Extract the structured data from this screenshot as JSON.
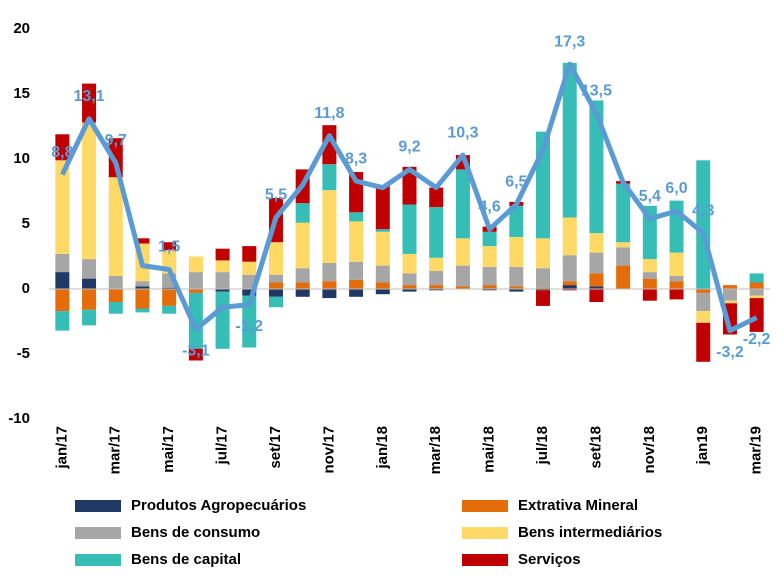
{
  "chart_data": {
    "type": "bar",
    "stacked": true,
    "categories": [
      "jan/17",
      null,
      "mar/17",
      null,
      "mai/17",
      null,
      "jul/17",
      null,
      "set/17",
      null,
      "nov/17",
      null,
      "jan/18",
      null,
      "mar/18",
      null,
      "mai/18",
      null,
      "jul/18",
      null,
      "set/18",
      null,
      "nov/18",
      null,
      "jan19",
      null,
      "mar/19"
    ],
    "ylim": [
      -10,
      20
    ],
    "yticks": [
      -10,
      -5,
      0,
      5,
      10,
      15,
      20
    ],
    "series": [
      {
        "name": "Produtos Agropecuários",
        "color": "#1f3864",
        "values": [
          1.3,
          0.8,
          0,
          0.2,
          0.1,
          0,
          -0.2,
          -0.5,
          -0.6,
          -0.6,
          -0.7,
          -0.6,
          -0.4,
          -0.2,
          -0.1,
          0,
          -0.1,
          -0.2,
          -0.1,
          0.3,
          0.2,
          0,
          0,
          0,
          0,
          0,
          0
        ]
      },
      {
        "name": "Extrativa Mineral",
        "color": "#e46c0a",
        "values": [
          -1.7,
          -1.6,
          -1.0,
          -1.5,
          -1.3,
          -0.3,
          0,
          0,
          0.5,
          0.5,
          0.6,
          0.7,
          0.5,
          0.3,
          0.3,
          0.2,
          0.3,
          0.2,
          0.1,
          0.3,
          1.0,
          1.8,
          0.8,
          0.6,
          -0.3,
          0.3,
          0.5
        ]
      },
      {
        "name": "Bens de consumo",
        "color": "#a6a6a6",
        "values": [
          1.4,
          1.5,
          1.0,
          0.4,
          1.1,
          1.3,
          1.3,
          1.1,
          0.6,
          1.1,
          1.4,
          1.4,
          1.3,
          0.9,
          1.1,
          1.6,
          1.4,
          1.5,
          1.5,
          2.0,
          1.6,
          1.4,
          0.5,
          0.4,
          -1.4,
          -0.9,
          -0.5
        ]
      },
      {
        "name": "Bens intermediários",
        "color": "#ffd966",
        "values": [
          7.2,
          10.5,
          7.6,
          2.9,
          1.8,
          1.2,
          0.9,
          1.0,
          2.5,
          3.5,
          5.6,
          3.1,
          2.6,
          1.5,
          1.0,
          2.1,
          1.6,
          2.3,
          2.3,
          2.9,
          1.5,
          0.4,
          1.0,
          1.8,
          -0.9,
          -0.2,
          -0.2
        ]
      },
      {
        "name": "Bens de capital",
        "color": "#36bdb6",
        "values": [
          -1.5,
          -1.2,
          -0.9,
          -0.3,
          -0.6,
          -4.3,
          -4.4,
          -4.0,
          -0.8,
          1.5,
          2.0,
          0.7,
          0.2,
          3.8,
          3.9,
          5.3,
          1.1,
          2.4,
          8.2,
          11.9,
          10.2,
          4.5,
          4.1,
          4.0,
          9.9,
          0,
          0.7
        ]
      },
      {
        "name": "Serviços",
        "color": "#c00000",
        "values": [
          2.0,
          3.0,
          3.0,
          0.4,
          0.6,
          -0.9,
          0.9,
          1.2,
          3.4,
          2.6,
          3.0,
          3.1,
          3.4,
          2.9,
          1.5,
          1.1,
          0.4,
          0.3,
          -1.2,
          -0.1,
          -1.0,
          0.2,
          -0.9,
          -0.8,
          -3.0,
          -2.4,
          -2.6
        ]
      }
    ],
    "line": {
      "color": "#5b9bd5",
      "values": [
        8.8,
        13.1,
        9.7,
        1.8,
        1.5,
        -3.1,
        -1.4,
        -1.2,
        5.5,
        8.0,
        11.8,
        8.3,
        7.8,
        9.2,
        7.8,
        10.3,
        4.6,
        6.5,
        10.7,
        17.3,
        13.5,
        8.2,
        5.4,
        6.0,
        4.3,
        -3.2,
        -2.2
      ],
      "value_labels": [
        "8,8",
        "13,1",
        "9,7",
        null,
        "1,5",
        "-3,1",
        null,
        "-1,2",
        "5,5",
        null,
        "11,8",
        "8,3",
        null,
        "9,2",
        null,
        "10,3",
        "4,6",
        "6,5",
        null,
        "17,3",
        "13,5",
        null,
        "5,4",
        "6,0",
        "4,3",
        "-3,2",
        "-2,2"
      ]
    }
  }
}
